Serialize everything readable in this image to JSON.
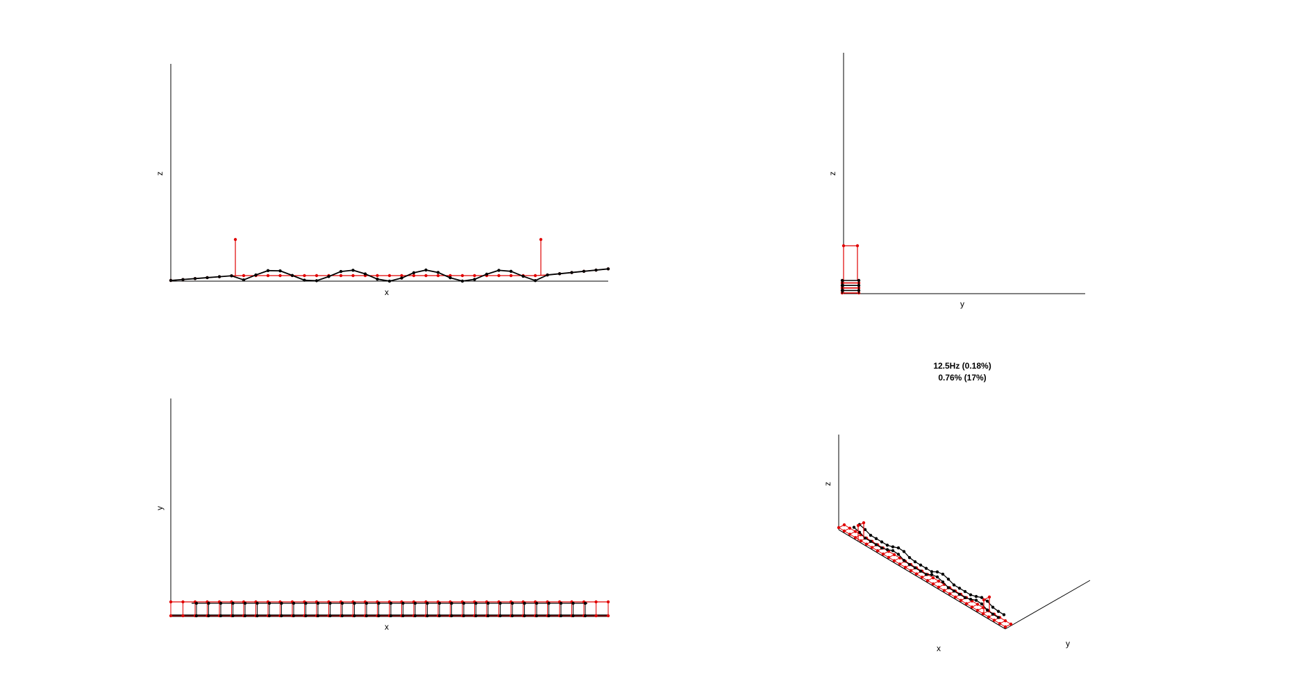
{
  "figure": {
    "title_line1": "12.5Hz (0.18%)",
    "title_line2": "0.76% (17%)",
    "colors": {
      "undeformed": "#e00000",
      "deformed": "#000000",
      "axes": "#000000"
    }
  },
  "chart_data": [
    {
      "type": "diagram",
      "view": "x-z elevation",
      "xlabel": "x",
      "ylabel": "z",
      "grid": false
    },
    {
      "type": "diagram",
      "view": "y-z elevation",
      "xlabel": "y",
      "ylabel": "z",
      "grid": false
    },
    {
      "type": "diagram",
      "view": "x-y plan",
      "xlabel": "x",
      "ylabel": "y",
      "grid": false
    },
    {
      "type": "diagram",
      "view": "isometric",
      "xlabel": "x",
      "ylabel": "y",
      "zlabel": "z",
      "grid": false
    }
  ]
}
